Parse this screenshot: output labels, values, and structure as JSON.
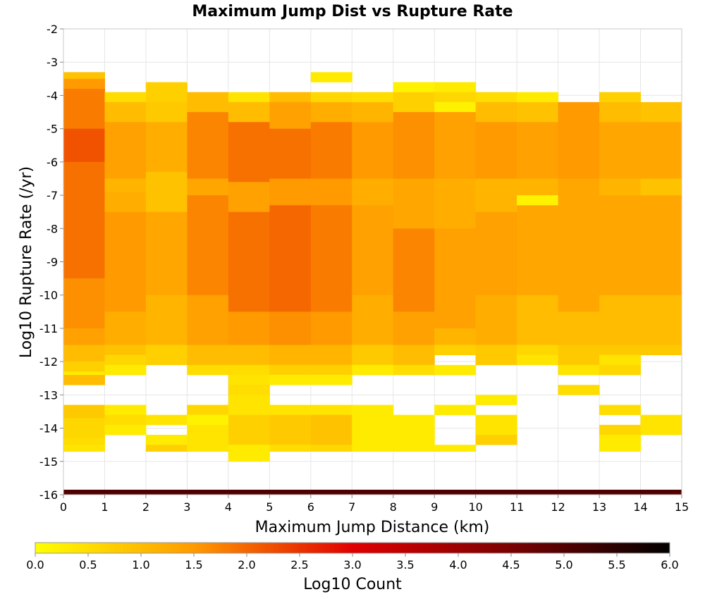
{
  "chart_data": {
    "type": "heatmap",
    "title": "Maximum Jump Dist vs Rupture Rate",
    "xlabel": "Maximum Jump Distance (km)",
    "ylabel": "Log10 Rupture Rate (/yr)",
    "xlim": [
      0,
      15
    ],
    "ylim": [
      -16,
      -2
    ],
    "x_ticks": [
      "0",
      "1",
      "2",
      "3",
      "4",
      "5",
      "6",
      "7",
      "8",
      "9",
      "10",
      "11",
      "12",
      "13",
      "14",
      "15"
    ],
    "y_ticks": [
      "-2",
      "-3",
      "-4",
      "-5",
      "-6",
      "-7",
      "-8",
      "-9",
      "-10",
      "-11",
      "-12",
      "-13",
      "-14",
      "-15",
      "-16"
    ],
    "grid": true,
    "x_bin_width": 1,
    "y_bin_height": 0.3,
    "colorbar": {
      "label": "Log10 Count",
      "range": [
        0,
        6
      ],
      "ticks": [
        "0.0",
        "0.5",
        "1.0",
        "1.5",
        "2.0",
        "2.5",
        "3.0",
        "3.5",
        "4.0",
        "4.5",
        "5.0",
        "5.5",
        "6.0"
      ],
      "stops": [
        {
          "v": 0.0,
          "color": "#ffff00"
        },
        {
          "v": 1.5,
          "color": "#ff9a00"
        },
        {
          "v": 3.0,
          "color": "#e00000"
        },
        {
          "v": 4.5,
          "color": "#7a0000"
        },
        {
          "v": 6.0,
          "color": "#000000"
        }
      ]
    },
    "columns": [
      {
        "x": 0.5,
        "ranges": [
          [
            -3.5,
            -3.3,
            0.9
          ],
          [
            -3.8,
            -3.5,
            1.5
          ],
          [
            -5,
            -3.8,
            1.8
          ],
          [
            -6,
            -5,
            2.2
          ],
          [
            -7,
            -6,
            1.9
          ],
          [
            -9.5,
            -7,
            1.9
          ],
          [
            -11,
            -9.5,
            1.6
          ],
          [
            -11.5,
            -11,
            1.4
          ],
          [
            -12,
            -11.5,
            1.0
          ],
          [
            -12.3,
            -12,
            0.7
          ],
          [
            -12.4,
            -12.3,
            0.3
          ],
          [
            -12.7,
            -12.4,
            1.0
          ],
          [
            -13.3,
            -13.7,
            0.8
          ],
          [
            -13.7,
            -14.3,
            0.6
          ],
          [
            -14.3,
            -14.5,
            0.5
          ],
          [
            -14.5,
            -14.7,
            0.4
          ]
        ]
      },
      {
        "x": 1.5,
        "ranges": [
          [
            -3.9,
            -4.2,
            0.5
          ],
          [
            -4.2,
            -4.8,
            1.0
          ],
          [
            -4.8,
            -6.5,
            1.4
          ],
          [
            -6.5,
            -6.9,
            1.1
          ],
          [
            -6.9,
            -7.5,
            1.2
          ],
          [
            -7.5,
            -10.5,
            1.5
          ],
          [
            -10.5,
            -11.5,
            1.2
          ],
          [
            -11.5,
            -11.8,
            0.9
          ],
          [
            -11.8,
            -12.1,
            0.6
          ],
          [
            -12.1,
            -12.4,
            0.3
          ],
          [
            -13.3,
            -13.6,
            0.3
          ],
          [
            -13.6,
            -13.9,
            0.5
          ],
          [
            -13.9,
            -14.2,
            0.3
          ]
        ]
      },
      {
        "x": 2.5,
        "ranges": [
          [
            -3.6,
            -4.2,
            0.7
          ],
          [
            -4.2,
            -4.8,
            0.8
          ],
          [
            -4.8,
            -6.3,
            1.2
          ],
          [
            -6.3,
            -7.5,
            0.9
          ],
          [
            -7.5,
            -10,
            1.3
          ],
          [
            -10,
            -11.5,
            1.1
          ],
          [
            -11.5,
            -12.1,
            0.7
          ],
          [
            -13.6,
            -13.9,
            0.4
          ],
          [
            -14.2,
            -14.5,
            0.3
          ],
          [
            -14.5,
            -14.7,
            0.7
          ]
        ]
      },
      {
        "x": 3.5,
        "ranges": [
          [
            -3.9,
            -4.5,
            1.0
          ],
          [
            -4.5,
            -6.5,
            1.7
          ],
          [
            -6.5,
            -7,
            1.3
          ],
          [
            -7,
            -10,
            1.7
          ],
          [
            -10,
            -11.5,
            1.4
          ],
          [
            -11.5,
            -12.1,
            1.0
          ],
          [
            -12.1,
            -12.4,
            0.5
          ],
          [
            -13.3,
            -13.6,
            0.6
          ],
          [
            -13.6,
            -13.9,
            0.2
          ],
          [
            -13.9,
            -14.5,
            0.4
          ],
          [
            -14.5,
            -14.7,
            0.4
          ]
        ]
      },
      {
        "x": 4.5,
        "ranges": [
          [
            -3.9,
            -4.2,
            0.4
          ],
          [
            -4.2,
            -4.8,
            1.0
          ],
          [
            -4.8,
            -6.6,
            1.9
          ],
          [
            -6.6,
            -7.5,
            1.4
          ],
          [
            -7.5,
            -10.5,
            1.9
          ],
          [
            -10.5,
            -11.5,
            1.5
          ],
          [
            -11.5,
            -12.1,
            1.0
          ],
          [
            -12.1,
            -12.4,
            0.5
          ],
          [
            -12.4,
            -12.7,
            0.4
          ],
          [
            -12.7,
            -13,
            0.5
          ],
          [
            -13,
            -13.6,
            0.4
          ],
          [
            -13.6,
            -14.5,
            0.7
          ],
          [
            -14.5,
            -15,
            0.3
          ]
        ]
      },
      {
        "x": 5.5,
        "ranges": [
          [
            -3.9,
            -4.2,
            1.0
          ],
          [
            -4.2,
            -5,
            1.4
          ],
          [
            -5,
            -6.5,
            1.9
          ],
          [
            -6.5,
            -7.3,
            1.5
          ],
          [
            -7.3,
            -10.5,
            2.0
          ],
          [
            -10.5,
            -11.5,
            1.6
          ],
          [
            -11.5,
            -12.1,
            1.1
          ],
          [
            -12.1,
            -12.4,
            0.7
          ],
          [
            -12.4,
            -12.7,
            0.3
          ],
          [
            -13.3,
            -13.6,
            0.4
          ],
          [
            -13.6,
            -14.5,
            0.8
          ],
          [
            -14.5,
            -14.7,
            0.5
          ]
        ]
      },
      {
        "x": 6.5,
        "ranges": [
          [
            -3.3,
            -3.6,
            0.3
          ],
          [
            -3.9,
            -4.2,
            0.6
          ],
          [
            -4.2,
            -4.8,
            1.2
          ],
          [
            -4.8,
            -6.5,
            1.8
          ],
          [
            -6.5,
            -7.3,
            1.5
          ],
          [
            -7.3,
            -10.5,
            1.8
          ],
          [
            -10.5,
            -11.5,
            1.5
          ],
          [
            -11.5,
            -12.1,
            1.1
          ],
          [
            -12.1,
            -12.4,
            0.7
          ],
          [
            -12.4,
            -12.7,
            0.3
          ],
          [
            -13.3,
            -13.6,
            0.4
          ],
          [
            -13.6,
            -14.5,
            0.9
          ],
          [
            -14.5,
            -14.7,
            0.6
          ]
        ]
      },
      {
        "x": 7.5,
        "ranges": [
          [
            -3.9,
            -4.2,
            0.5
          ],
          [
            -4.2,
            -4.8,
            1.1
          ],
          [
            -4.8,
            -6.5,
            1.5
          ],
          [
            -6.5,
            -7.3,
            1.2
          ],
          [
            -7.3,
            -10,
            1.4
          ],
          [
            -10,
            -11.5,
            1.2
          ],
          [
            -11.5,
            -12.1,
            0.8
          ],
          [
            -12.1,
            -12.4,
            0.3
          ],
          [
            -13.3,
            -13.6,
            0.3
          ],
          [
            -13.6,
            -14.7,
            0.3
          ]
        ]
      },
      {
        "x": 8.5,
        "ranges": [
          [
            -3.6,
            -3.9,
            0.2
          ],
          [
            -3.9,
            -4.5,
            0.7
          ],
          [
            -4.5,
            -6.5,
            1.6
          ],
          [
            -6.5,
            -8,
            1.3
          ],
          [
            -8,
            -10.5,
            1.7
          ],
          [
            -10.5,
            -11.5,
            1.4
          ],
          [
            -11.5,
            -12.1,
            1.0
          ],
          [
            -12.1,
            -12.4,
            0.5
          ],
          [
            -13.6,
            -14.7,
            0.3
          ]
        ]
      },
      {
        "x": 9.5,
        "ranges": [
          [
            -3.6,
            -3.9,
            0.3
          ],
          [
            -3.9,
            -4.2,
            0.6
          ],
          [
            -4.2,
            -4.5,
            0.2
          ],
          [
            -4.5,
            -6.5,
            1.4
          ],
          [
            -6.5,
            -8,
            1.2
          ],
          [
            -8,
            -11,
            1.4
          ],
          [
            -11,
            -11.5,
            1.1
          ],
          [
            -11.5,
            -11.8,
            0.7
          ],
          [
            -12.1,
            -12.4,
            0.3
          ],
          [
            -13.3,
            -13.6,
            0.3
          ],
          [
            -14.5,
            -14.7,
            0.3
          ]
        ]
      },
      {
        "x": 10.5,
        "ranges": [
          [
            -3.9,
            -4.2,
            0.5
          ],
          [
            -4.2,
            -4.8,
            1.0
          ],
          [
            -4.8,
            -6.5,
            1.5
          ],
          [
            -6.5,
            -7.5,
            1.1
          ],
          [
            -7.5,
            -10,
            1.4
          ],
          [
            -10,
            -11.5,
            1.2
          ],
          [
            -11.5,
            -12.1,
            0.8
          ],
          [
            -13,
            -13.3,
            0.3
          ],
          [
            -13.6,
            -14.2,
            0.4
          ],
          [
            -14.2,
            -14.5,
            0.7
          ]
        ]
      },
      {
        "x": 11.5,
        "ranges": [
          [
            -3.9,
            -4.2,
            0.3
          ],
          [
            -4.2,
            -4.8,
            0.9
          ],
          [
            -4.8,
            -6.5,
            1.4
          ],
          [
            -6.5,
            -7,
            1.1
          ],
          [
            -7,
            -7.3,
            0.2
          ],
          [
            -7.3,
            -10,
            1.3
          ],
          [
            -10,
            -11.5,
            1.0
          ],
          [
            -11.5,
            -11.8,
            0.6
          ],
          [
            -11.8,
            -12.1,
            0.4
          ]
        ]
      },
      {
        "x": 12.5,
        "ranges": [
          [
            -4.2,
            -6.5,
            1.5
          ],
          [
            -6.5,
            -10.5,
            1.3
          ],
          [
            -10.5,
            -11.5,
            1.0
          ],
          [
            -11.5,
            -12.1,
            0.8
          ],
          [
            -12.1,
            -12.4,
            0.4
          ],
          [
            -12.7,
            -13,
            0.5
          ]
        ]
      },
      {
        "x": 13.5,
        "ranges": [
          [
            -3.9,
            -4.2,
            0.7
          ],
          [
            -4.2,
            -4.8,
            1.0
          ],
          [
            -4.8,
            -6.5,
            1.3
          ],
          [
            -6.5,
            -7,
            1.1
          ],
          [
            -7,
            -10,
            1.3
          ],
          [
            -10,
            -11.5,
            1.0
          ],
          [
            -11.5,
            -11.8,
            0.8
          ],
          [
            -11.8,
            -12.1,
            0.4
          ],
          [
            -12.1,
            -12.4,
            0.6
          ],
          [
            -13.3,
            -13.6,
            0.5
          ],
          [
            -13.9,
            -14.2,
            0.6
          ],
          [
            -14.2,
            -14.7,
            0.3
          ]
        ]
      },
      {
        "x": 14.5,
        "ranges": [
          [
            -4.2,
            -4.8,
            0.9
          ],
          [
            -4.8,
            -6.5,
            1.3
          ],
          [
            -6.5,
            -7,
            0.9
          ],
          [
            -7,
            -10,
            1.3
          ],
          [
            -10,
            -11.5,
            1.0
          ],
          [
            -11.5,
            -11.8,
            0.8
          ],
          [
            -13.6,
            -14.2,
            0.4
          ]
        ]
      }
    ],
    "bottom_band": {
      "y_from": -16,
      "y_to": -15.85,
      "value": 5.0
    }
  }
}
